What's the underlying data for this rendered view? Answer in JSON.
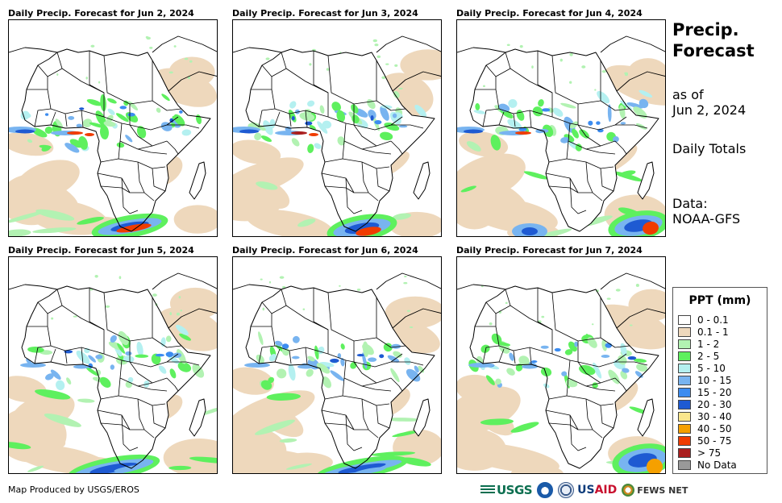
{
  "panels": [
    {
      "title": "Daily Precip. Forecast for Jun 2, 2024"
    },
    {
      "title": "Daily Precip. Forecast for Jun 3, 2024"
    },
    {
      "title": "Daily Precip. Forecast for Jun 4, 2024"
    },
    {
      "title": "Daily Precip. Forecast for Jun 5, 2024"
    },
    {
      "title": "Daily Precip. Forecast for Jun 6, 2024"
    },
    {
      "title": "Daily Precip. Forecast for Jun 7, 2024"
    }
  ],
  "side": {
    "title": "Precip.\nForecast",
    "as_of": "as of\nJun 2, 2024",
    "totals": "Daily Totals",
    "source": "Data:\nNOAA-GFS"
  },
  "legend": {
    "title": "PPT (mm)",
    "items": [
      {
        "label": "0 - 0.1",
        "color": "#ffffff"
      },
      {
        "label": "0.1 - 1",
        "color": "#eed8bc"
      },
      {
        "label": "1 - 2",
        "color": "#b2f2b2"
      },
      {
        "label": "2 - 5",
        "color": "#5ef05e"
      },
      {
        "label": "5 - 10",
        "color": "#b4f0f0"
      },
      {
        "label": "10 - 15",
        "color": "#78b4f0"
      },
      {
        "label": "15 - 20",
        "color": "#3c8cf0"
      },
      {
        "label": "20 - 30",
        "color": "#1e5ad2"
      },
      {
        "label": "30 - 40",
        "color": "#fae68c"
      },
      {
        "label": "40 - 50",
        "color": "#f5a000"
      },
      {
        "label": "50 - 75",
        "color": "#f03c00"
      },
      {
        "label": "> 75",
        "color": "#aa1e1e"
      },
      {
        "label": "No Data",
        "color": "#999999"
      }
    ]
  },
  "credit": "Map Produced by USGS/EROS",
  "logos": {
    "usgs": "USGS",
    "usaid_a": "US",
    "usaid_b": "AID",
    "fews": "FEWS NET"
  }
}
